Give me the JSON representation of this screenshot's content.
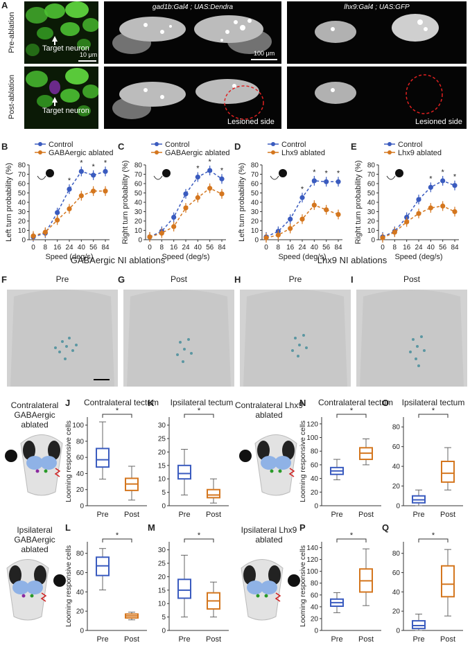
{
  "panel_labels": [
    "A",
    "B",
    "C",
    "D",
    "E",
    "F",
    "G",
    "H",
    "I",
    "J",
    "K",
    "L",
    "M",
    "N",
    "O",
    "P",
    "Q"
  ],
  "panelA": {
    "row_labels": [
      "Pre-ablation",
      "Post-ablation"
    ],
    "titles": [
      "gad1b:Gal4 ; UAS:Dendra",
      "lhx9:Gal4 ; UAS:GFP"
    ],
    "target_label": "Target neuron",
    "scale_small": "10 μm",
    "scale_large": "100 μm",
    "lesioned": "Lesioned side"
  },
  "colors": {
    "control": "#3a5bbf",
    "ablated": "#d4761e"
  },
  "speed_ticks": [
    "0",
    "8",
    "16",
    "24",
    "40",
    "56",
    "84"
  ],
  "speed_label": "Speed (deg/s)",
  "section_titles": {
    "gaba": "GABAergic NI ablations",
    "lhx9": "Lhx9 NI ablations"
  },
  "anatomy": {
    "F": "Pre",
    "G": "Post",
    "H": "Pre",
    "I": "Post"
  },
  "conditions": {
    "J": "Contralateral GABAergic ablated",
    "L": "Ipsilateral GABAergic ablated",
    "N": "Contralateral Lhx9 ablated",
    "P": "Ipsilateral Lhx9 ablated"
  },
  "box_titles": {
    "J": "Contralateral tectum",
    "K": "Ipsilateral tectum",
    "N": "Contralateral tectum",
    "O": "Ipsilateral tectum"
  },
  "box_ylabel": "Looming responsive cells",
  "box_xcats": [
    "Pre",
    "Post"
  ],
  "sig": "*",
  "chart_data": [
    {
      "panel": "B",
      "type": "line",
      "xlabel": "Speed (deg/s)",
      "ylabel": "Left turn probability (%)",
      "x": [
        0,
        8,
        16,
        24,
        40,
        56,
        84
      ],
      "ylim": [
        0,
        80
      ],
      "yticks": [
        0,
        10,
        20,
        30,
        40,
        50,
        60,
        70,
        80
      ],
      "series": [
        {
          "name": "Control",
          "values": [
            3,
            7,
            29,
            54,
            73,
            69,
            73
          ]
        },
        {
          "name": "GABAergic ablated",
          "values": [
            4,
            8,
            21,
            33,
            47,
            52,
            52
          ]
        }
      ],
      "significant": [
        false,
        false,
        false,
        true,
        true,
        true,
        true
      ]
    },
    {
      "panel": "C",
      "type": "line",
      "xlabel": "Speed (deg/s)",
      "ylabel": "Right turn probability (%)",
      "x": [
        0,
        8,
        16,
        24,
        40,
        56,
        84
      ],
      "ylim": [
        0,
        80
      ],
      "yticks": [
        0,
        10,
        20,
        30,
        40,
        50,
        60,
        70,
        80
      ],
      "series": [
        {
          "name": "Control",
          "values": [
            3,
            9,
            24,
            49,
            67,
            74,
            65
          ]
        },
        {
          "name": "GABAergic ablated",
          "values": [
            3,
            7,
            14,
            34,
            45,
            55,
            49
          ]
        }
      ],
      "significant": [
        false,
        false,
        false,
        false,
        true,
        true,
        true
      ]
    },
    {
      "panel": "D",
      "type": "line",
      "xlabel": "Speed (deg/s)",
      "ylabel": "Left turn probability (%)",
      "x": [
        0,
        8,
        16,
        24,
        40,
        56,
        84
      ],
      "ylim": [
        0,
        80
      ],
      "yticks": [
        0,
        10,
        20,
        30,
        40,
        50,
        60,
        70,
        80
      ],
      "series": [
        {
          "name": "Control",
          "values": [
            3,
            9,
            22,
            45,
            63,
            62,
            62
          ]
        },
        {
          "name": "Lhx9 ablated",
          "values": [
            2,
            5,
            12,
            22,
            37,
            32,
            27
          ]
        }
      ],
      "significant": [
        false,
        false,
        false,
        true,
        true,
        true,
        true
      ]
    },
    {
      "panel": "E",
      "type": "line",
      "xlabel": "Speed (deg/s)",
      "ylabel": "Right turn probability (%)",
      "x": [
        0,
        8,
        16,
        24,
        40,
        56,
        84
      ],
      "ylim": [
        0,
        80
      ],
      "yticks": [
        0,
        10,
        20,
        30,
        40,
        50,
        60,
        70,
        80
      ],
      "series": [
        {
          "name": "Control",
          "values": [
            3,
            9,
            24,
            43,
            56,
            63,
            58
          ]
        },
        {
          "name": "Lhx9 ablated",
          "values": [
            2,
            8,
            19,
            28,
            34,
            36,
            30
          ]
        }
      ],
      "significant": [
        false,
        false,
        false,
        false,
        true,
        true,
        true
      ]
    },
    {
      "panel": "J",
      "type": "box",
      "categories": [
        "Pre",
        "Post"
      ],
      "yticks": [
        0,
        20,
        40,
        60,
        80,
        100
      ],
      "ylim": [
        0,
        110
      ],
      "boxes": [
        {
          "min": 33,
          "q1": 48,
          "median": 57,
          "q3": 71,
          "max": 104
        },
        {
          "min": 7,
          "q1": 19,
          "median": 27,
          "q3": 34,
          "max": 49
        }
      ]
    },
    {
      "panel": "K",
      "type": "box",
      "categories": [
        "Pre",
        "Post"
      ],
      "yticks": [
        0,
        5,
        10,
        15,
        20,
        25,
        30
      ],
      "ylim": [
        0,
        33
      ],
      "boxes": [
        {
          "min": 4,
          "q1": 10,
          "median": 12,
          "q3": 15,
          "max": 21
        },
        {
          "min": 1,
          "q1": 3,
          "median": 4,
          "q3": 6,
          "max": 10
        }
      ]
    },
    {
      "panel": "L",
      "type": "box",
      "categories": [
        "Pre",
        "Post"
      ],
      "yticks": [
        0,
        20,
        40,
        60,
        80
      ],
      "ylim": [
        0,
        92
      ],
      "boxes": [
        {
          "min": 42,
          "q1": 57,
          "median": 67,
          "q3": 76,
          "max": 85
        },
        {
          "min": 11,
          "q1": 13,
          "median": 15,
          "q3": 17,
          "max": 19
        }
      ]
    },
    {
      "panel": "M",
      "type": "box",
      "categories": [
        "Pre",
        "Post"
      ],
      "yticks": [
        0,
        5,
        10,
        15,
        20,
        25,
        30
      ],
      "ylim": [
        0,
        33
      ],
      "boxes": [
        {
          "min": 5,
          "q1": 12,
          "median": 15,
          "q3": 19,
          "max": 28
        },
        {
          "min": 5,
          "q1": 8,
          "median": 11,
          "q3": 14,
          "max": 18
        }
      ]
    },
    {
      "panel": "N",
      "type": "box",
      "categories": [
        "Pre",
        "Post"
      ],
      "yticks": [
        0,
        20,
        40,
        60,
        80,
        100,
        120
      ],
      "ylim": [
        0,
        130
      ],
      "boxes": [
        {
          "min": 38,
          "q1": 46,
          "median": 51,
          "q3": 56,
          "max": 68
        },
        {
          "min": 60,
          "q1": 68,
          "median": 77,
          "q3": 85,
          "max": 98
        }
      ]
    },
    {
      "panel": "O",
      "type": "box",
      "categories": [
        "Pre",
        "Post"
      ],
      "yticks": [
        0,
        20,
        40,
        60,
        80
      ],
      "ylim": [
        0,
        90
      ],
      "boxes": [
        {
          "min": 0,
          "q1": 3,
          "median": 6,
          "q3": 10,
          "max": 16
        },
        {
          "min": 16,
          "q1": 24,
          "median": 33,
          "q3": 45,
          "max": 59
        }
      ]
    },
    {
      "panel": "P",
      "type": "box",
      "categories": [
        "Pre",
        "Post"
      ],
      "yticks": [
        0,
        20,
        40,
        60,
        80,
        100,
        120,
        140
      ],
      "ylim": [
        0,
        150
      ],
      "boxes": [
        {
          "min": 30,
          "q1": 41,
          "median": 47,
          "q3": 53,
          "max": 64
        },
        {
          "min": 42,
          "q1": 65,
          "median": 84,
          "q3": 104,
          "max": 138
        }
      ]
    },
    {
      "panel": "Q",
      "type": "box",
      "categories": [
        "Pre",
        "Post"
      ],
      "yticks": [
        0,
        20,
        40,
        60,
        80
      ],
      "ylim": [
        0,
        92
      ],
      "boxes": [
        {
          "min": 0,
          "q1": 2,
          "median": 5,
          "q3": 10,
          "max": 17
        },
        {
          "min": 15,
          "q1": 35,
          "median": 48,
          "q3": 67,
          "max": 84
        }
      ]
    }
  ]
}
